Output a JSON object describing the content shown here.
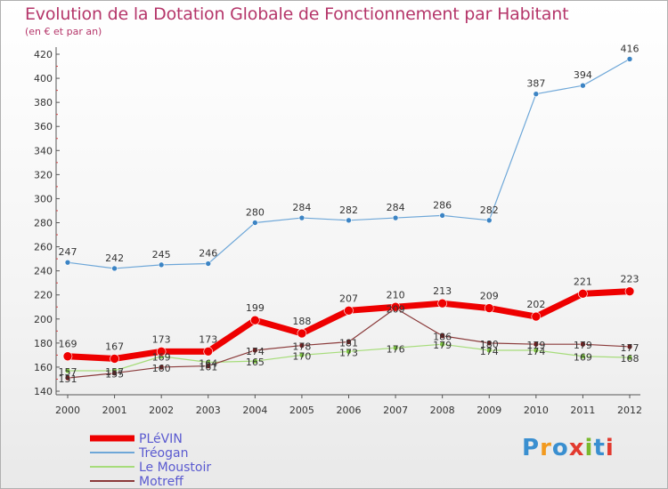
{
  "title": "Evolution de la Dotation Globale de Fonctionnement par Habitant",
  "subtitle": "(en € et par an)",
  "brand": {
    "text": "Proxiti",
    "colors": [
      "#3a8fd0",
      "#f29a1f",
      "#3a8fd0",
      "#e23a2f",
      "#7ab92d",
      "#3a8fd0",
      "#e23a2f"
    ]
  },
  "chart_data": {
    "type": "line",
    "title": "Evolution de la Dotation Globale de Fonctionnement par Habitant",
    "subtitle": "(en € et par an)",
    "x": [
      "2000",
      "2001",
      "2002",
      "2003",
      "2004",
      "2005",
      "2006",
      "2007",
      "2008",
      "2009",
      "2010",
      "2011",
      "2012"
    ],
    "ylim": [
      140,
      420
    ],
    "yticks": [
      140,
      160,
      180,
      200,
      220,
      240,
      260,
      280,
      300,
      320,
      340,
      360,
      380,
      400,
      420
    ],
    "grid": false,
    "legend": "bottom-left",
    "series": [
      {
        "name": "Tréogan",
        "color": "#6ea7d8",
        "marker": "#3c84c4",
        "width": 1.2,
        "radius": 3,
        "values": [
          247,
          242,
          245,
          246,
          280,
          284,
          282,
          284,
          286,
          282,
          387,
          394,
          416
        ],
        "labels": [
          "247",
          "242",
          "245",
          "246",
          "280",
          "284",
          "282",
          "284",
          "286",
          "282",
          "387",
          "394",
          "416"
        ]
      },
      {
        "name": "Le Moustoir",
        "color": "#a6dc7a",
        "marker": "#7cc043",
        "width": 1.2,
        "radius": 3,
        "values": [
          157,
          157,
          169,
          164,
          165,
          170,
          173,
          176,
          179,
          174,
          174,
          169,
          168
        ],
        "labels": [
          "157",
          "157",
          "169",
          "164",
          "165",
          "170",
          "173",
          "176",
          "179",
          "174",
          "174",
          "169",
          "168"
        ]
      },
      {
        "name": "Motreff",
        "color": "#8a3a3a",
        "marker": "#6e1f1f",
        "width": 1.2,
        "radius": 3,
        "values": [
          151,
          155,
          160,
          161,
          174,
          178,
          181,
          209,
          186,
          180,
          179,
          179,
          177
        ],
        "labels": [
          "151",
          "155",
          "160",
          "161",
          "174",
          "178",
          "181",
          "209",
          "186",
          "180",
          "179",
          "179",
          "177"
        ]
      },
      {
        "name": "PLéVIN",
        "color": "#ee0000",
        "marker": "#ee0000",
        "width": 7,
        "radius": 5,
        "values": [
          169,
          167,
          173,
          173,
          199,
          188,
          207,
          210,
          213,
          209,
          202,
          221,
          223
        ],
        "labels": [
          "169",
          "167",
          "173",
          "173",
          "199",
          "188",
          "207",
          "210",
          "213",
          "209",
          "202",
          "221",
          "223"
        ]
      }
    ],
    "legend_entries": [
      {
        "name": "PLéVIN",
        "color": "#ee0000",
        "text_color": "#5a5ad0"
      },
      {
        "name": "Tréogan",
        "color": "#6ea7d8",
        "text_color": "#5a5ad0"
      },
      {
        "name": "Le Moustoir",
        "color": "#a6dc7a",
        "text_color": "#5a5ad0"
      },
      {
        "name": "Motreff",
        "color": "#8a3a3a",
        "text_color": "#5a5ad0"
      }
    ]
  }
}
